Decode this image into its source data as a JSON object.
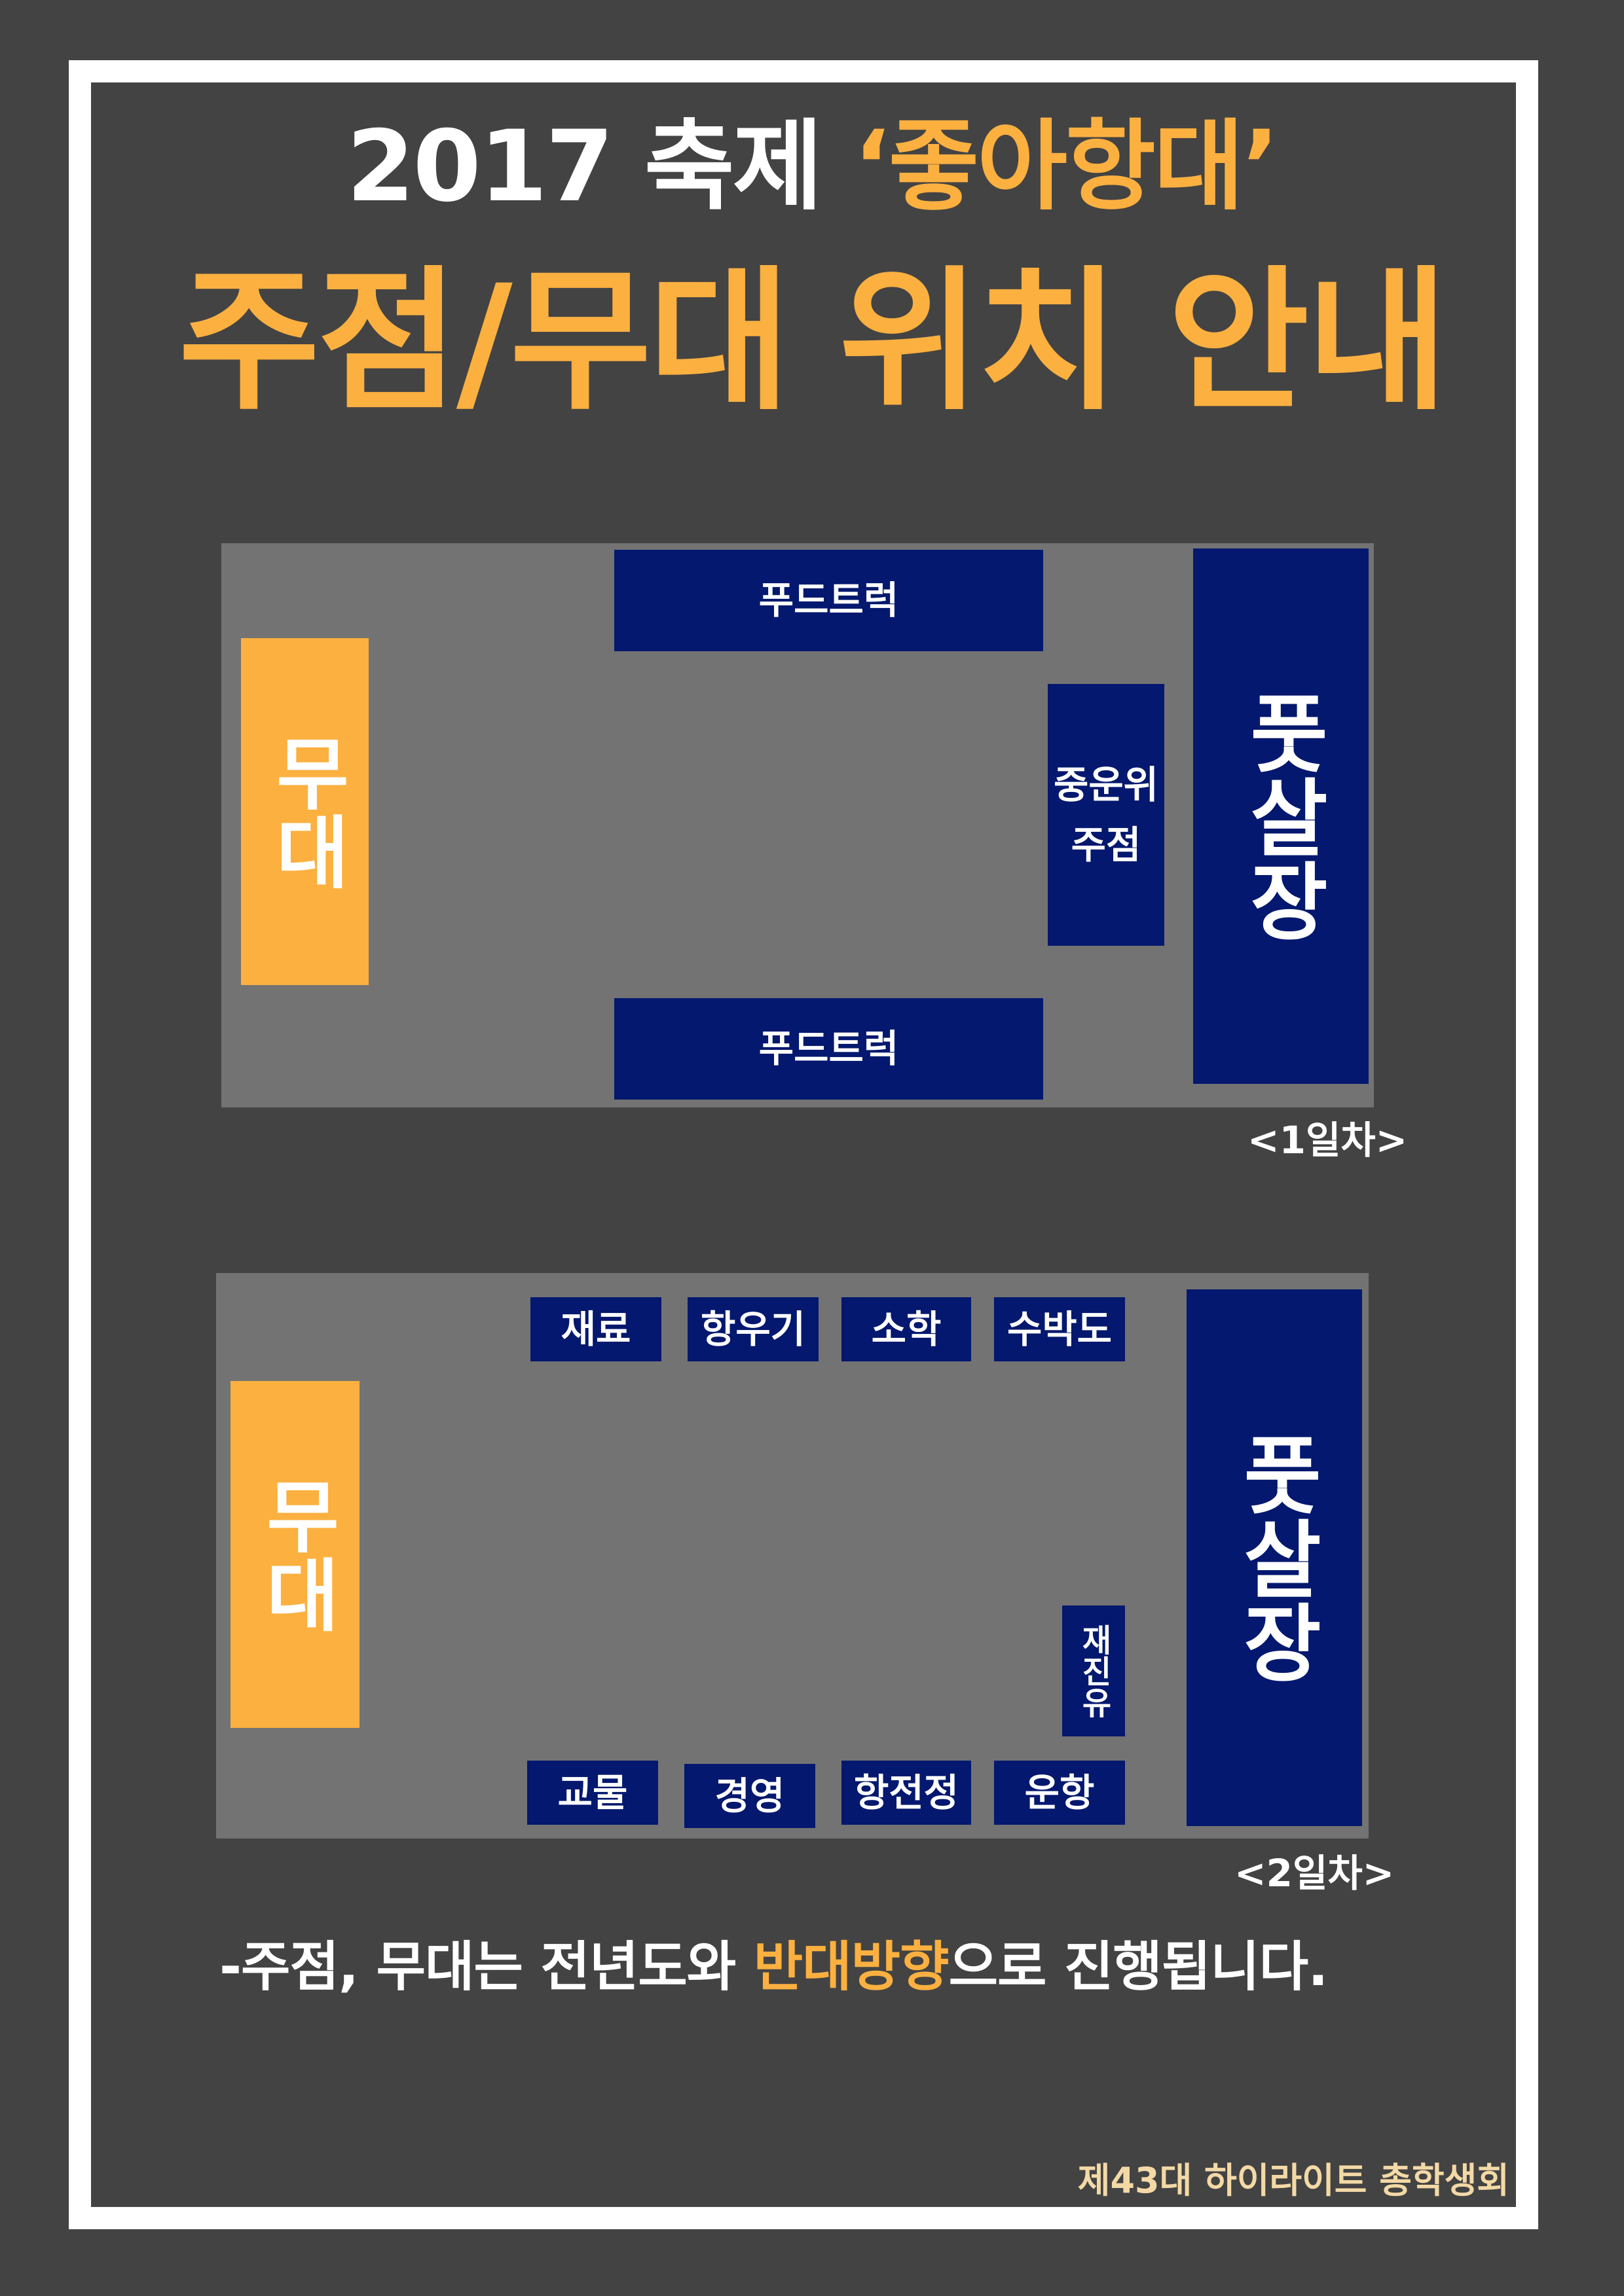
{
  "title": {
    "line1_prefix": "2017 축제 ",
    "line1_highlight": "‘좋아항대’",
    "line2": "주점/무대 위치 안내"
  },
  "day1": {
    "caption": "<1일차>",
    "stage": "무대",
    "grass_field": "풋살장",
    "foodtruck_top": "푸드트럭",
    "foodtruck_bottom": "푸드트럭",
    "pub_line1": "중운위",
    "pub_line2": "주점"
  },
  "day2": {
    "caption": "<2일차>",
    "stage": "무대",
    "grass_field": "풋살장",
    "top_booths": [
      "재료",
      "항우기",
      "소학",
      "수박도"
    ],
    "bottom_booths": [
      "교물",
      "경영",
      "항전정",
      "운항"
    ],
    "side_booth": "재진유"
  },
  "notice": {
    "prefix": "-주점, 무대는 전년도와 ",
    "highlight": "반대방향",
    "suffix": "으로 진행됩니다."
  },
  "credit": "제43대 하이라이트 총학생회",
  "colors": {
    "background": "#434343",
    "frame": "#ffffff",
    "accent": "#fbb040",
    "booth": "#03186e",
    "map": "#737373"
  }
}
